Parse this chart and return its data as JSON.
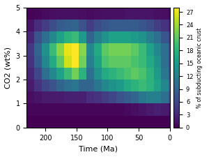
{
  "title": "",
  "xlabel": "Time (Ma)",
  "ylabel": "CO2 (wt%)",
  "cbar_label": "% of subducting oceanic crust",
  "xlim": [
    230,
    0
  ],
  "ylim": [
    0,
    5
  ],
  "vmin": 0,
  "vmax": 28,
  "cbar_ticks": [
    0,
    3,
    6,
    9,
    12,
    15,
    18,
    21,
    24,
    27
  ],
  "cmap": "viridis",
  "time_edges": [
    230,
    218,
    206,
    194,
    182,
    170,
    158,
    146,
    134,
    122,
    110,
    98,
    86,
    74,
    62,
    50,
    38,
    26,
    14,
    2,
    0
  ],
  "co2_edges": [
    0.0,
    0.5,
    1.0,
    1.5,
    2.0,
    2.5,
    3.0,
    3.5,
    4.0,
    4.5,
    5.0
  ],
  "data": [
    [
      0.0,
      0.0,
      0.0,
      0.0,
      0.0,
      0.0,
      0.0,
      0.0,
      0.0,
      0.0,
      0.0,
      0.0,
      0.0,
      0.0,
      0.0,
      0.0,
      0.0,
      0.0,
      0.0,
      0.0
    ],
    [
      0.5,
      0.5,
      0.5,
      0.5,
      0.5,
      0.5,
      0.5,
      0.5,
      0.5,
      0.5,
      0.5,
      0.5,
      0.5,
      0.8,
      1.0,
      1.5,
      2.0,
      2.5,
      2.0,
      1.5
    ],
    [
      1.0,
      1.5,
      2.0,
      2.0,
      2.0,
      2.5,
      2.5,
      2.5,
      3.5,
      4.0,
      5.0,
      6.0,
      7.0,
      8.0,
      9.0,
      11.0,
      12.0,
      12.0,
      10.0,
      8.0
    ],
    [
      2.0,
      4.0,
      6.0,
      7.0,
      9.0,
      10.0,
      11.0,
      9.0,
      9.0,
      11.0,
      13.0,
      14.0,
      15.0,
      17.0,
      18.0,
      19.0,
      18.0,
      16.0,
      13.0,
      10.0
    ],
    [
      3.0,
      6.0,
      10.0,
      13.0,
      16.0,
      19.0,
      22.0,
      18.0,
      10.0,
      14.0,
      17.0,
      18.0,
      19.0,
      20.0,
      21.0,
      20.0,
      18.0,
      15.0,
      11.0,
      8.0
    ],
    [
      4.0,
      8.0,
      13.0,
      17.0,
      21.0,
      26.0,
      28.0,
      22.0,
      12.0,
      16.0,
      20.0,
      21.0,
      21.0,
      21.0,
      20.0,
      19.0,
      17.0,
      14.0,
      10.0,
      7.0
    ],
    [
      4.5,
      9.0,
      14.0,
      19.0,
      23.0,
      27.0,
      28.0,
      23.0,
      13.0,
      17.0,
      21.0,
      22.0,
      22.0,
      22.0,
      21.0,
      19.0,
      16.0,
      13.0,
      10.0,
      7.0
    ],
    [
      3.0,
      7.0,
      10.0,
      13.0,
      16.0,
      18.0,
      19.0,
      15.0,
      9.0,
      12.0,
      14.0,
      16.0,
      16.0,
      16.0,
      15.0,
      14.0,
      12.0,
      10.0,
      7.5,
      5.5
    ],
    [
      1.5,
      3.5,
      5.0,
      6.5,
      8.0,
      8.5,
      9.0,
      7.0,
      5.0,
      6.5,
      7.5,
      8.0,
      8.0,
      8.0,
      8.0,
      7.5,
      6.5,
      5.0,
      4.0,
      3.0
    ],
    [
      0.3,
      0.5,
      0.8,
      1.0,
      1.2,
      1.2,
      1.2,
      1.0,
      0.8,
      1.0,
      1.2,
      1.2,
      1.2,
      1.5,
      1.5,
      1.5,
      1.5,
      1.2,
      1.0,
      0.8
    ]
  ]
}
